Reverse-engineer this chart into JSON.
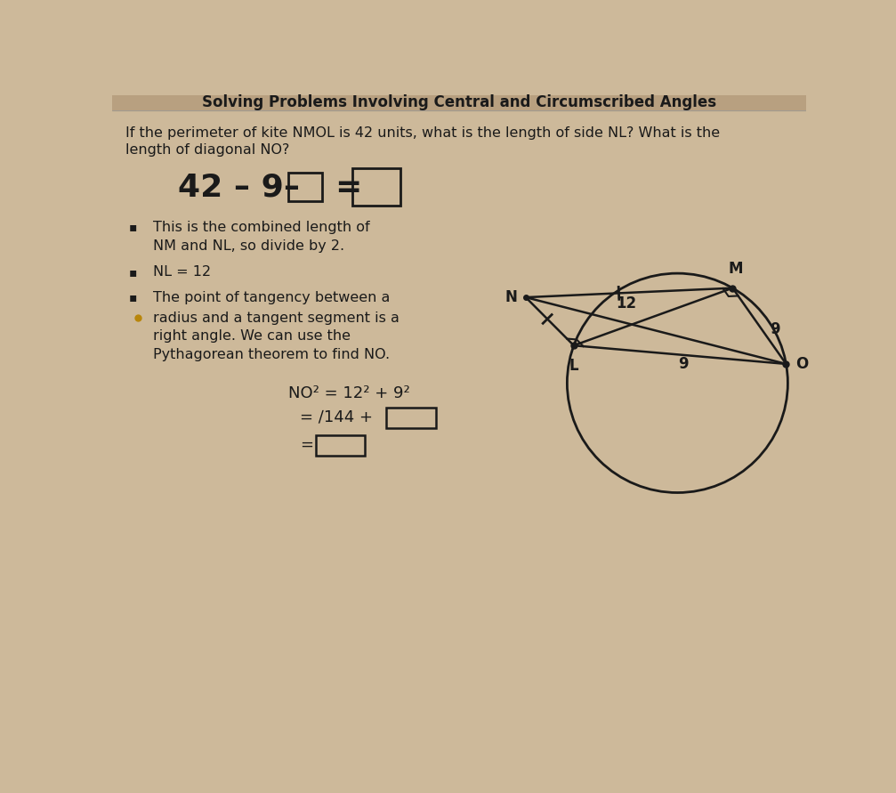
{
  "bg_color": "#cdb99a",
  "title_bar_color": "#b8a080",
  "title_text": "Solving Problems Involving Central and Circumscribed Angles",
  "title_fontsize": 12,
  "text_color": "#1a1a1a",
  "circle_color": "#1a1a1a",
  "kite_color": "#1a1a1a",
  "font_family": "DejaVu Sans",
  "question_line1": "If the perimeter of kite NMOL is 42 units, what is the length of side NL? What is the",
  "question_line2": "length of diagonal NO?",
  "bullet1a": "This is the combined length of",
  "bullet1b": "NM and NL, so divide by 2.",
  "bullet2": "NL = 12",
  "bullet3a": "The point of tangency between a",
  "bullet3b": "radius and a tangent segment is a",
  "bullet3c": "right angle. We can use the",
  "bullet3d": "Pythagorean theorem to find NO.",
  "eq_line1": "NO² = 12² + 9²",
  "eq_line2": "= ∕144 +",
  "eq_line3": "="
}
